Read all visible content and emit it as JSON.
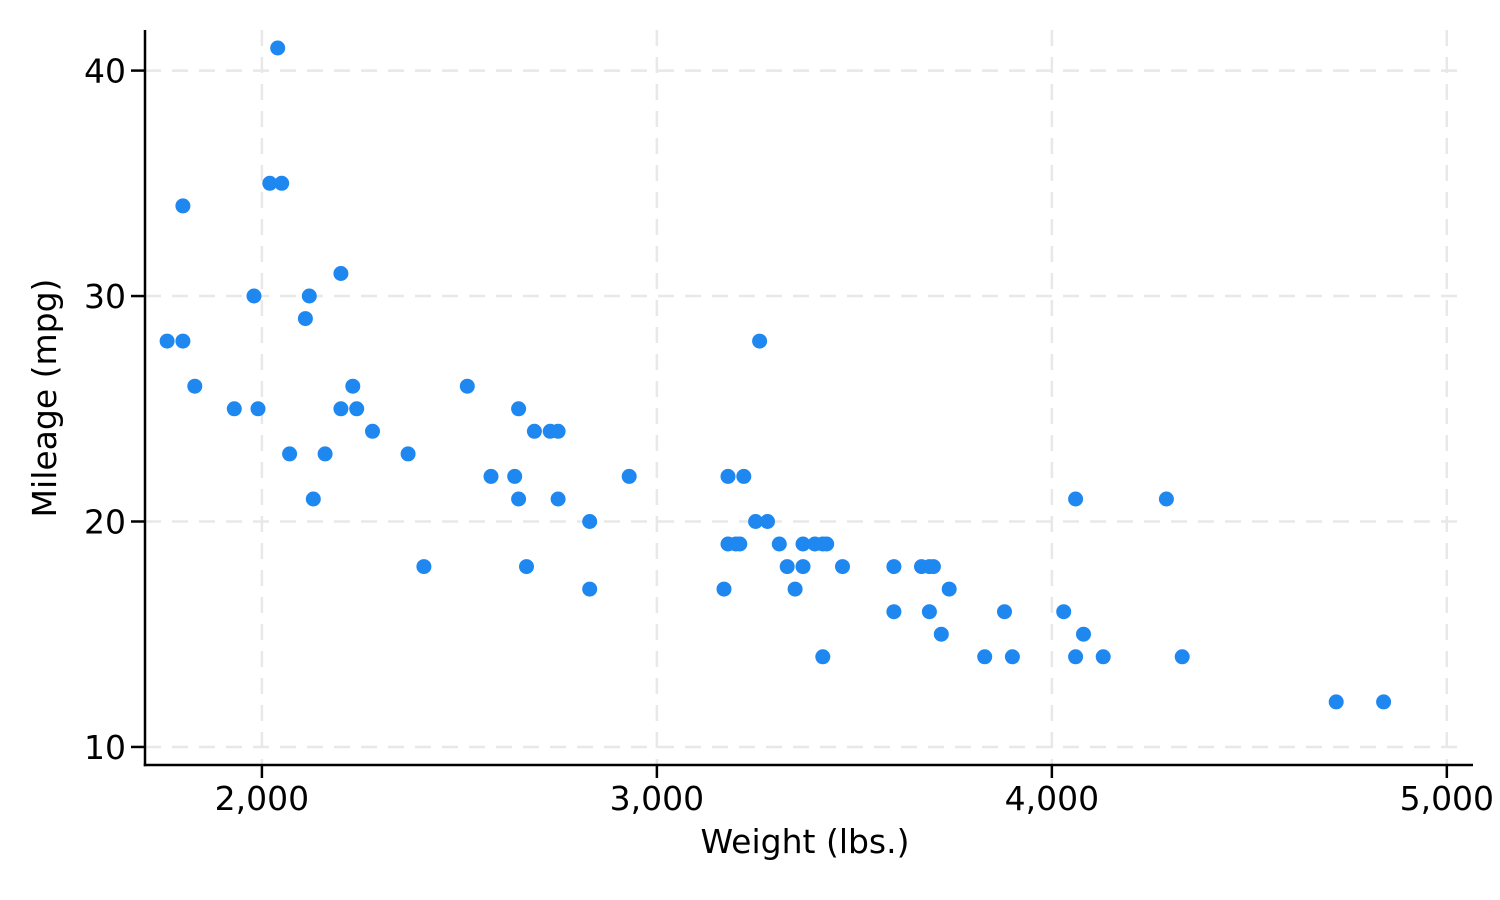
{
  "chart_data": {
    "type": "scatter",
    "title": "",
    "xlabel": "Weight (lbs.)",
    "ylabel": "Mileage (mpg)",
    "x_ticks": [
      2000,
      3000,
      4000,
      5000
    ],
    "x_tick_labels": [
      "2,000",
      "3,000",
      "4,000",
      "5,000"
    ],
    "y_ticks": [
      10,
      20,
      30,
      40
    ],
    "y_tick_labels": [
      "10",
      "20",
      "30",
      "40"
    ],
    "xlim": [
      1704,
      5046
    ],
    "ylim": [
      9.2,
      41.8
    ],
    "grid": true,
    "grid_style": "dashed",
    "legend_position": "none",
    "marker_color": "#1E87F0",
    "grid_color": "#E8E8E8",
    "axis_color": "#000000",
    "background_color": "#FFFFFF",
    "marker_radius_px": 7.5,
    "points": [
      [
        1760,
        28
      ],
      [
        1800,
        28
      ],
      [
        1800,
        34
      ],
      [
        1830,
        26
      ],
      [
        1930,
        25
      ],
      [
        1980,
        30
      ],
      [
        1990,
        25
      ],
      [
        2020,
        35
      ],
      [
        2040,
        41
      ],
      [
        2050,
        35
      ],
      [
        2070,
        23
      ],
      [
        2110,
        29
      ],
      [
        2120,
        30
      ],
      [
        2130,
        21
      ],
      [
        2160,
        23
      ],
      [
        2200,
        25
      ],
      [
        2200,
        31
      ],
      [
        2230,
        26
      ],
      [
        2240,
        25
      ],
      [
        2280,
        24
      ],
      [
        2370,
        23
      ],
      [
        2410,
        18
      ],
      [
        2520,
        26
      ],
      [
        2580,
        22
      ],
      [
        2640,
        22
      ],
      [
        2650,
        21
      ],
      [
        2650,
        25
      ],
      [
        2670,
        18
      ],
      [
        2690,
        24
      ],
      [
        2730,
        24
      ],
      [
        2750,
        21
      ],
      [
        2750,
        24
      ],
      [
        2830,
        17
      ],
      [
        2830,
        20
      ],
      [
        2930,
        22
      ],
      [
        3170,
        17
      ],
      [
        3180,
        19
      ],
      [
        3180,
        22
      ],
      [
        3200,
        19
      ],
      [
        3210,
        19
      ],
      [
        3220,
        22
      ],
      [
        3250,
        20
      ],
      [
        3260,
        28
      ],
      [
        3280,
        20
      ],
      [
        3310,
        19
      ],
      [
        3330,
        18
      ],
      [
        3350,
        17
      ],
      [
        3370,
        18
      ],
      [
        3370,
        19
      ],
      [
        3400,
        19
      ],
      [
        3420,
        14
      ],
      [
        3420,
        19
      ],
      [
        3430,
        19
      ],
      [
        3470,
        18
      ],
      [
        3600,
        16
      ],
      [
        3600,
        18
      ],
      [
        3670,
        18
      ],
      [
        3690,
        16
      ],
      [
        3690,
        18
      ],
      [
        3700,
        18
      ],
      [
        3720,
        15
      ],
      [
        3740,
        17
      ],
      [
        3830,
        14
      ],
      [
        3880,
        16
      ],
      [
        3900,
        14
      ],
      [
        4030,
        16
      ],
      [
        4060,
        14
      ],
      [
        4060,
        21
      ],
      [
        4080,
        15
      ],
      [
        4130,
        14
      ],
      [
        4290,
        21
      ],
      [
        4330,
        14
      ],
      [
        4720,
        12
      ],
      [
        4840,
        12
      ]
    ]
  }
}
